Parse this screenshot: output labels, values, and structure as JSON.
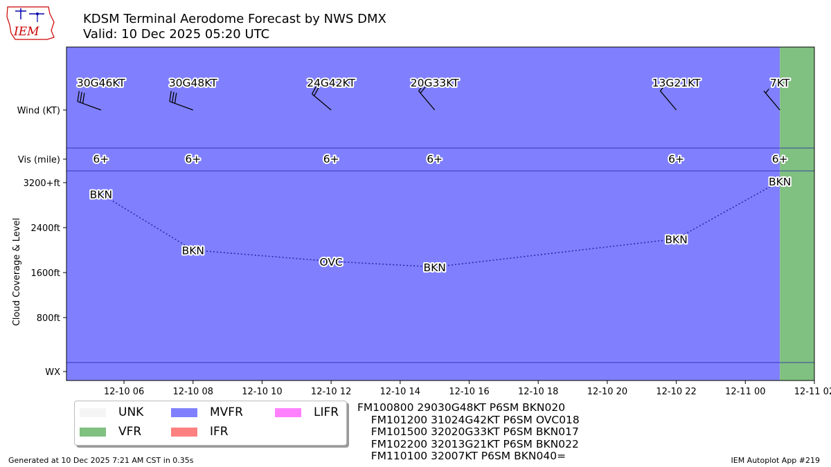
{
  "title_line1": "KDSM Terminal Aerodome Forecast by NWS DMX",
  "title_line2": "Valid: 10 Dec 2025 05:20 UTC",
  "logo": {
    "text": "IEM",
    "color": "#cc0000",
    "accent": "#0000aa"
  },
  "chart_data": {
    "type": "taf-timeline",
    "x_range": [
      "2025-12-10T04:20Z",
      "2025-12-11T02:00Z"
    ],
    "x_ticks": [
      {
        "value": "2025-12-10T06:00Z",
        "label": "12-10 06"
      },
      {
        "value": "2025-12-10T08:00Z",
        "label": "12-10 08"
      },
      {
        "value": "2025-12-10T10:00Z",
        "label": "12-10 10"
      },
      {
        "value": "2025-12-10T12:00Z",
        "label": "12-10 12"
      },
      {
        "value": "2025-12-10T14:00Z",
        "label": "12-10 14"
      },
      {
        "value": "2025-12-10T16:00Z",
        "label": "12-10 16"
      },
      {
        "value": "2025-12-10T18:00Z",
        "label": "12-10 18"
      },
      {
        "value": "2025-12-10T20:00Z",
        "label": "12-10 20"
      },
      {
        "value": "2025-12-10T22:00Z",
        "label": "12-10 22"
      },
      {
        "value": "2025-12-11T00:00Z",
        "label": "12-11 00"
      },
      {
        "value": "2025-12-11T02:00Z",
        "label": "12-11 02"
      }
    ],
    "ylabel": "Cloud Coverage & Level",
    "y_rows": [
      {
        "label": "Wind (KT)"
      },
      {
        "label": "Vis (mile)"
      },
      {
        "label": "3200+ft",
        "value": 3200
      },
      {
        "label": "2400ft",
        "value": 2400
      },
      {
        "label": "1600ft",
        "value": 1600
      },
      {
        "label": "800ft",
        "value": 800
      },
      {
        "label": "WX"
      }
    ],
    "cloud_ylim": [
      0,
      3200
    ],
    "category_bands": [
      {
        "start": "2025-12-10T04:20Z",
        "end": "2025-12-11T01:00Z",
        "category": "MVFR",
        "color": "#8080ff"
      },
      {
        "start": "2025-12-11T01:00Z",
        "end": "2025-12-11T02:00Z",
        "category": "VFR",
        "color": "#80c080"
      }
    ],
    "forecasts": [
      {
        "time": "2025-12-10T05:20Z",
        "wind_dir": 290,
        "wind_speed": 30,
        "wind_gust": 46,
        "wind_label": "30G46KT",
        "vis_label": "6+",
        "cloud_cover": "BKN",
        "cloud_level": 3000
      },
      {
        "time": "2025-12-10T08:00Z",
        "wind_dir": 290,
        "wind_speed": 30,
        "wind_gust": 48,
        "wind_label": "30G48KT",
        "vis_label": "6+",
        "cloud_cover": "BKN",
        "cloud_level": 2000
      },
      {
        "time": "2025-12-10T12:00Z",
        "wind_dir": 310,
        "wind_speed": 24,
        "wind_gust": 42,
        "wind_label": "24G42KT",
        "vis_label": "6+",
        "cloud_cover": "OVC",
        "cloud_level": 1800
      },
      {
        "time": "2025-12-10T15:00Z",
        "wind_dir": 320,
        "wind_speed": 20,
        "wind_gust": 33,
        "wind_label": "20G33KT",
        "vis_label": "6+",
        "cloud_cover": "BKN",
        "cloud_level": 1700
      },
      {
        "time": "2025-12-10T22:00Z",
        "wind_dir": 320,
        "wind_speed": 13,
        "wind_gust": 21,
        "wind_label": "13G21KT",
        "vis_label": "6+",
        "cloud_cover": "BKN",
        "cloud_level": 2200
      },
      {
        "time": "2025-12-11T01:00Z",
        "wind_dir": 320,
        "wind_speed": 7,
        "wind_gust": null,
        "wind_label": "7KT",
        "vis_label": "6+",
        "cloud_cover": "BKN",
        "cloud_level": 4000
      }
    ],
    "line_color": "#2a2aa0"
  },
  "legend": {
    "items": [
      {
        "label": "UNK",
        "color": "#f5f5f5"
      },
      {
        "label": "VFR",
        "color": "#80c080"
      },
      {
        "label": "MVFR",
        "color": "#8080ff"
      },
      {
        "label": "IFR",
        "color": "#ff8080"
      },
      {
        "label": "LIFR",
        "color": "#ff80ff"
      }
    ]
  },
  "taf_lines": [
    "FM100800 29030G48KT P6SM BKN020",
    "    FM101200 31024G42KT P6SM OVC018",
    "    FM101500 32020G33KT P6SM BKN017",
    "    FM102200 32013G21KT P6SM BKN022",
    "    FM110100 32007KT P6SM BKN040="
  ],
  "footer": {
    "generated": "Generated at 10 Dec 2025 7:21 AM CST in 0.35s",
    "app": "IEM Autoplot App #219"
  }
}
